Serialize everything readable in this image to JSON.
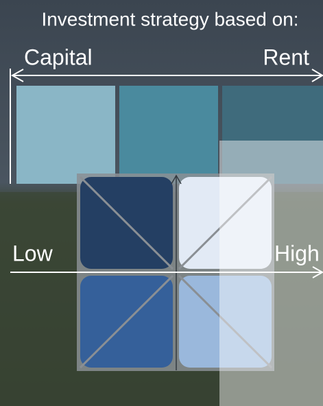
{
  "header": {
    "title": "Investment strategy based on:"
  },
  "top_axis": {
    "left": "Capital",
    "right": "Rent"
  },
  "middle_axis": {
    "left": "Low",
    "right": "High"
  }
}
